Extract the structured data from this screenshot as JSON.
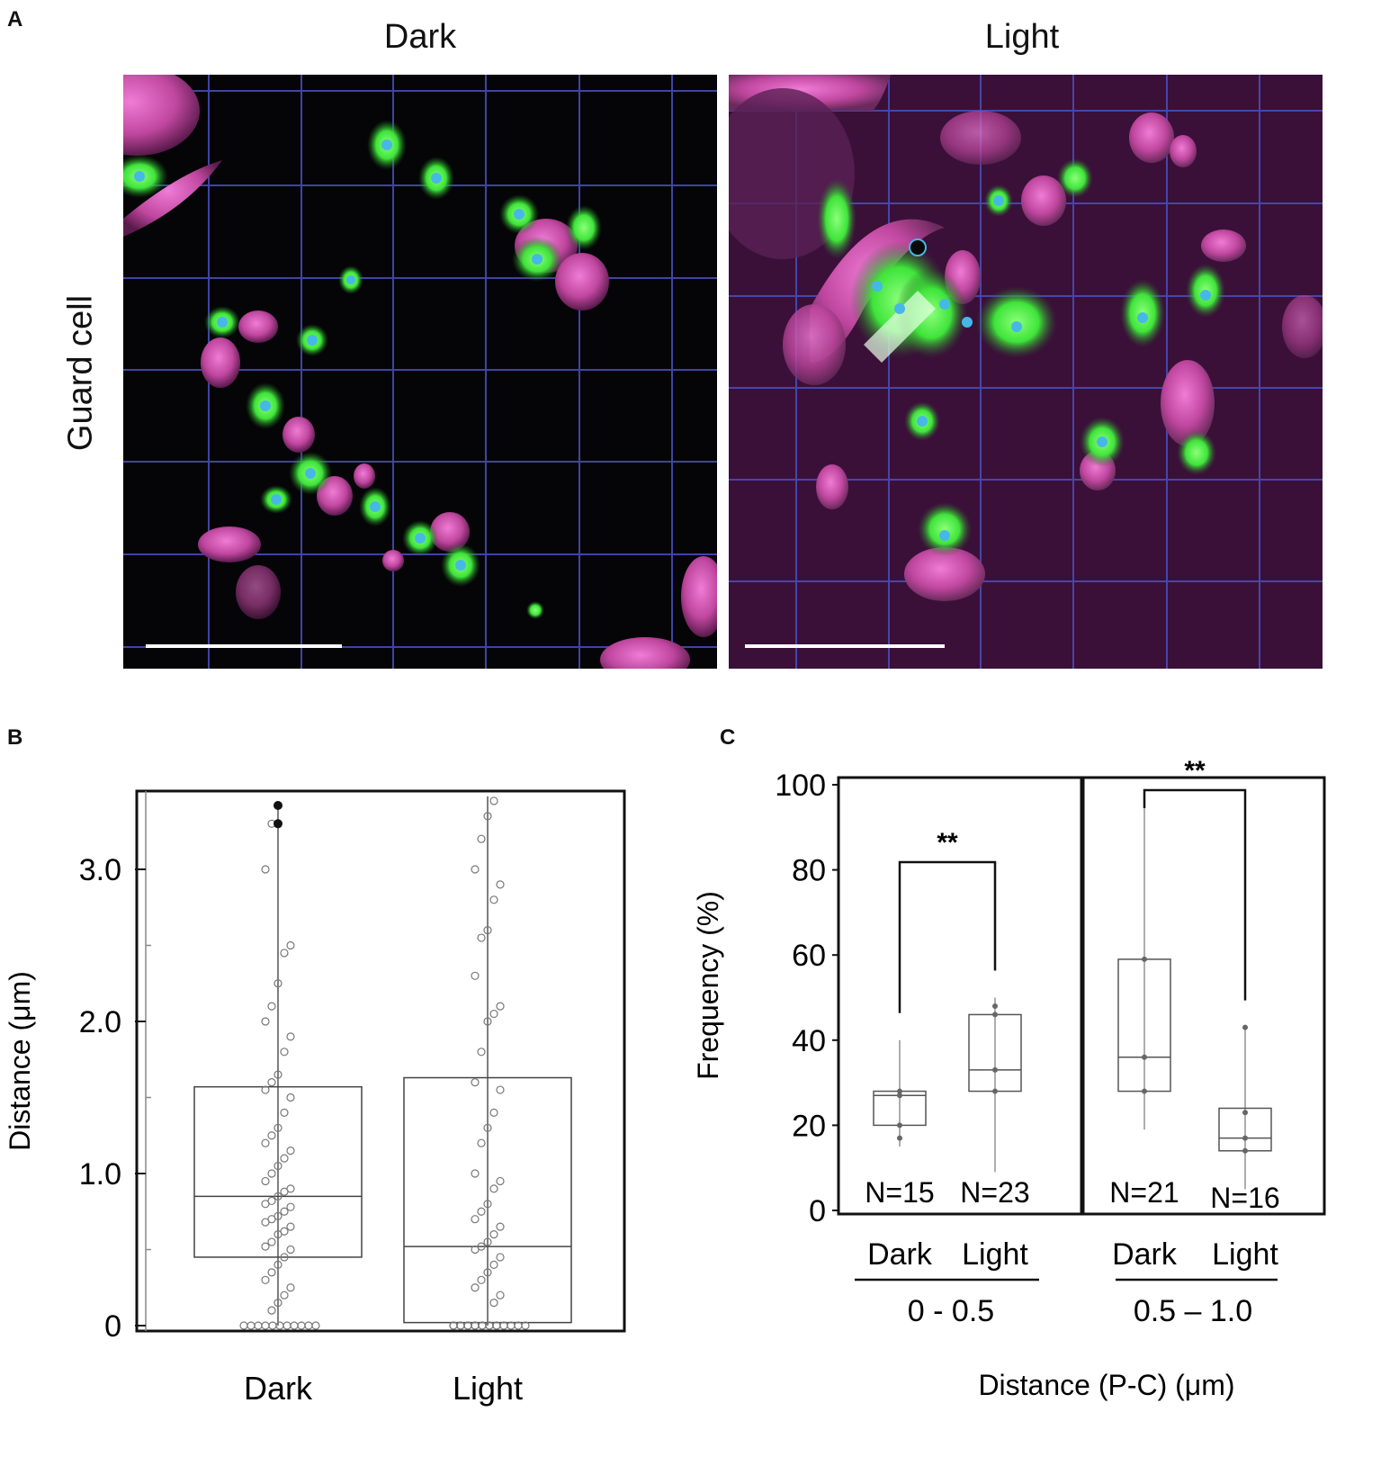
{
  "panel_a": {
    "letter": "A",
    "col_titles": [
      "Dark",
      "Light"
    ],
    "row_label": "Guard cell"
  },
  "panel_b": {
    "letter": "B"
  },
  "panel_c": {
    "letter": "C"
  },
  "colors": {
    "magenta": "#c0479f",
    "green": "#3fe43a",
    "cyan": "#46b8e6",
    "grid": "#4a4fc0",
    "box": "#444444"
  },
  "chart_data": [
    {
      "type": "box",
      "panel": "B",
      "categories": [
        "Dark",
        "Light"
      ],
      "ylabel": "Distance (μm)",
      "yticks": [
        "0",
        "1.0",
        "2.0",
        "3.0"
      ],
      "yticks_values": [
        0,
        1,
        2,
        3
      ],
      "ylim": [
        0,
        3.6
      ],
      "boxes": [
        {
          "name": "Dark",
          "q1": 0.45,
          "median": 0.85,
          "q3": 1.57,
          "min": 0,
          "max": 3.4
        },
        {
          "name": "Light",
          "q1": 0.02,
          "median": 0.52,
          "q3": 1.63,
          "min": 0,
          "max": 3.48
        }
      ],
      "points": {
        "Dark": [
          0,
          0,
          0,
          0,
          0,
          0,
          0,
          0,
          0,
          0,
          0,
          0.1,
          0.15,
          0.2,
          0.25,
          0.3,
          0.35,
          0.4,
          0.45,
          0.5,
          0.52,
          0.55,
          0.6,
          0.62,
          0.65,
          0.68,
          0.7,
          0.72,
          0.75,
          0.78,
          0.8,
          0.82,
          0.85,
          0.88,
          0.9,
          0.95,
          1.0,
          1.05,
          1.1,
          1.15,
          1.2,
          1.25,
          1.3,
          1.4,
          1.5,
          1.55,
          1.6,
          1.65,
          1.8,
          1.9,
          2.0,
          2.1,
          2.25,
          2.45,
          2.5,
          3.0,
          3.3,
          3.42
        ],
        "Light": [
          0,
          0,
          0,
          0,
          0,
          0,
          0,
          0,
          0,
          0,
          0,
          0,
          0,
          0,
          0,
          0,
          0,
          0,
          0.15,
          0.2,
          0.25,
          0.3,
          0.35,
          0.4,
          0.45,
          0.5,
          0.52,
          0.55,
          0.6,
          0.65,
          0.7,
          0.75,
          0.8,
          0.9,
          0.95,
          1.0,
          1.2,
          1.3,
          1.4,
          1.55,
          1.6,
          1.8,
          2.0,
          2.05,
          2.1,
          2.3,
          2.55,
          2.6,
          2.8,
          2.9,
          3.0,
          3.2,
          3.35,
          3.45
        ]
      }
    },
    {
      "type": "box",
      "panel": "C",
      "ylabel": "Frequency (%)",
      "xlabel": "Distance (P-C)  (μm)",
      "yticks": [
        "0",
        "20",
        "40",
        "60",
        "80",
        "100"
      ],
      "yticks_values": [
        0,
        20,
        40,
        60,
        80,
        100
      ],
      "ylim": [
        0,
        100
      ],
      "groups": [
        {
          "range_label": "0 - 0.5",
          "significance": "**",
          "boxes": [
            {
              "name": "Dark",
              "n_label": "N=15",
              "q1": 20,
              "median": 27,
              "q3": 28,
              "min": 15,
              "max": 40,
              "points": [
                17,
                20,
                27,
                28
              ]
            },
            {
              "name": "Light",
              "n_label": "N=23",
              "q1": 28,
              "median": 33,
              "q3": 46,
              "min": 9,
              "max": 50,
              "points": [
                28,
                33,
                46,
                48
              ]
            }
          ]
        },
        {
          "range_label": "0.5 – 1.0",
          "significance": "**",
          "boxes": [
            {
              "name": "Dark",
              "n_label": "N=21",
              "q1": 28,
              "median": 36,
              "q3": 59,
              "min": 19,
              "max": 96,
              "points": [
                28,
                36,
                59
              ]
            },
            {
              "name": "Light",
              "n_label": "N=16",
              "q1": 14,
              "median": 17,
              "q3": 24,
              "min": 5,
              "max": 43,
              "points": [
                14,
                17,
                23,
                43
              ]
            }
          ]
        }
      ]
    }
  ]
}
